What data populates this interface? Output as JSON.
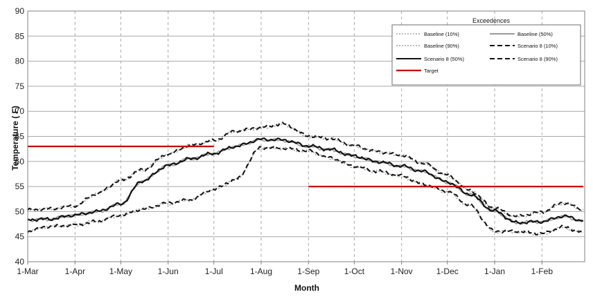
{
  "chart_data": {
    "type": "line",
    "xlabel": "Month",
    "ylabel": "Temperature ( F)",
    "ylim": [
      40,
      90
    ],
    "ytick_step": 5,
    "xlim_days": [
      0,
      365
    ],
    "grid": {
      "x": true,
      "y": true
    },
    "legend": {
      "title": "Exceedences",
      "placement": "top-right"
    },
    "x_tick_labels": [
      "1-Mar",
      "1-Apr",
      "1-May",
      "1-Jun",
      "1-Jul",
      "1-Aug",
      "1-Sep",
      "1-Oct",
      "1-Nov",
      "1-Dec",
      "1-Jan",
      "1-Feb"
    ],
    "y_tick_labels": [
      "40",
      "45",
      "50",
      "55",
      "60",
      "65",
      "70",
      "75",
      "80",
      "85",
      "90"
    ],
    "series": [
      {
        "name": "Baseline (10%)",
        "color": "#909090",
        "style": "dotted",
        "x": [
          "1-Mar",
          "15-Mar",
          "1-Apr",
          "15-Apr",
          "1-May",
          "15-May",
          "1-Jun",
          "15-Jun",
          "1-Jul",
          "15-Jul",
          "1-Aug",
          "15-Aug",
          "1-Sep",
          "15-Sep",
          "1-Oct",
          "15-Oct",
          "1-Nov",
          "15-Nov",
          "1-Dec",
          "15-Dec",
          "1-Jan",
          "15-Jan",
          "1-Feb",
          "15-Feb",
          "28-Feb"
        ],
        "y": [
          50.3,
          50.5,
          51.1,
          53.5,
          56.2,
          58.3,
          61.4,
          63.2,
          64.1,
          66.0,
          66.7,
          67.4,
          65.0,
          64.6,
          63.0,
          62.0,
          61.2,
          59.6,
          57.3,
          54.3,
          50.6,
          49.0,
          49.8,
          51.7,
          50.4
        ]
      },
      {
        "name": "Baseline (50%)",
        "color": "#9a9a9a",
        "style": "solid",
        "x": [
          "1-Mar",
          "15-Mar",
          "1-Apr",
          "15-Apr",
          "1-May",
          "15-May",
          "1-Jun",
          "15-Jun",
          "1-Jul",
          "15-Jul",
          "1-Aug",
          "15-Aug",
          "1-Sep",
          "15-Sep",
          "1-Oct",
          "15-Oct",
          "1-Nov",
          "15-Nov",
          "1-Dec",
          "15-Dec",
          "1-Jan",
          "15-Jan",
          "1-Feb",
          "15-Feb",
          "28-Feb"
        ],
        "y": [
          48.3,
          48.5,
          49.3,
          49.9,
          51.5,
          56.1,
          59.2,
          60.5,
          61.6,
          63.0,
          64.3,
          64.2,
          63.0,
          62.3,
          61.0,
          60.0,
          59.0,
          58.0,
          55.9,
          53.5,
          50.0,
          47.8,
          48.0,
          49.0,
          48.1
        ]
      },
      {
        "name": "Baseline (90%)",
        "color": "#909090",
        "style": "dotted",
        "x": [
          "1-Mar",
          "15-Mar",
          "1-Apr",
          "15-Apr",
          "1-May",
          "15-May",
          "1-Jun",
          "15-Jun",
          "1-Jul",
          "15-Jul",
          "1-Aug",
          "15-Aug",
          "1-Sep",
          "15-Sep",
          "1-Oct",
          "15-Oct",
          "1-Nov",
          "15-Nov",
          "1-Dec",
          "15-Dec",
          "1-Jan",
          "15-Jan",
          "1-Feb",
          "15-Feb",
          "28-Feb"
        ],
        "y": [
          46.0,
          47.0,
          47.3,
          48.0,
          49.2,
          50.5,
          51.6,
          52.3,
          54.4,
          56.3,
          62.7,
          62.6,
          62.0,
          60.6,
          59.0,
          58.0,
          57.0,
          55.4,
          53.9,
          51.3,
          46.0,
          46.0,
          45.5,
          46.8,
          45.8
        ]
      },
      {
        "name": "Scenario 8 (10%)",
        "color": "#111111",
        "style": "dashed",
        "x": [
          "1-Mar",
          "15-Mar",
          "1-Apr",
          "15-Apr",
          "1-May",
          "15-May",
          "1-Jun",
          "15-Jun",
          "1-Jul",
          "15-Jul",
          "1-Aug",
          "15-Aug",
          "1-Sep",
          "15-Sep",
          "1-Oct",
          "15-Oct",
          "1-Nov",
          "15-Nov",
          "1-Dec",
          "15-Dec",
          "1-Jan",
          "15-Jan",
          "1-Feb",
          "15-Feb",
          "28-Feb"
        ],
        "y": [
          50.3,
          50.5,
          51.2,
          53.5,
          56.2,
          58.3,
          61.4,
          63.2,
          64.2,
          66.0,
          66.8,
          67.5,
          65.1,
          64.6,
          63.1,
          62.0,
          61.3,
          59.6,
          57.3,
          54.3,
          50.7,
          49.1,
          49.9,
          51.8,
          50.5
        ]
      },
      {
        "name": "Scenario 8 (50%)",
        "color": "#111111",
        "style": "solid",
        "x": [
          "1-Mar",
          "15-Mar",
          "1-Apr",
          "15-Apr",
          "1-May",
          "15-May",
          "1-Jun",
          "15-Jun",
          "1-Jul",
          "15-Jul",
          "1-Aug",
          "15-Aug",
          "1-Sep",
          "15-Sep",
          "1-Oct",
          "15-Oct",
          "1-Nov",
          "15-Nov",
          "1-Dec",
          "15-Dec",
          "1-Jan",
          "15-Jan",
          "1-Feb",
          "15-Feb",
          "28-Feb"
        ],
        "y": [
          48.4,
          48.5,
          49.3,
          50.0,
          51.5,
          56.1,
          59.2,
          60.5,
          61.6,
          63.0,
          64.4,
          64.3,
          63.1,
          62.4,
          61.1,
          60.0,
          59.1,
          58.0,
          55.9,
          53.5,
          50.1,
          47.8,
          48.0,
          49.1,
          48.2
        ]
      },
      {
        "name": "Scenario 8 (90%)",
        "color": "#111111",
        "style": "dashed",
        "x": [
          "1-Mar",
          "15-Mar",
          "1-Apr",
          "15-Apr",
          "1-May",
          "15-May",
          "1-Jun",
          "15-Jun",
          "1-Jul",
          "15-Jul",
          "1-Aug",
          "15-Aug",
          "1-Sep",
          "15-Sep",
          "1-Oct",
          "15-Oct",
          "1-Nov",
          "15-Nov",
          "1-Dec",
          "15-Dec",
          "1-Jan",
          "15-Jan",
          "1-Feb",
          "15-Feb",
          "28-Feb"
        ],
        "y": [
          46.1,
          47.0,
          47.4,
          48.0,
          49.3,
          50.5,
          51.7,
          52.3,
          54.5,
          56.3,
          62.8,
          62.7,
          62.1,
          60.7,
          59.1,
          58.1,
          57.1,
          55.5,
          54.0,
          51.4,
          46.1,
          46.1,
          45.6,
          46.9,
          45.9
        ]
      },
      {
        "name": "Target",
        "color": "#cc0000",
        "style": "solid",
        "x": [
          "1-Mar",
          "1-Jul",
          "1-Sep",
          "28-Feb"
        ],
        "y": [
          63,
          63,
          55,
          55
        ],
        "segments": [
          [
            "1-Mar",
            "1-Jul",
            63
          ],
          [
            "1-Sep",
            "28-Feb",
            55
          ]
        ]
      }
    ]
  }
}
